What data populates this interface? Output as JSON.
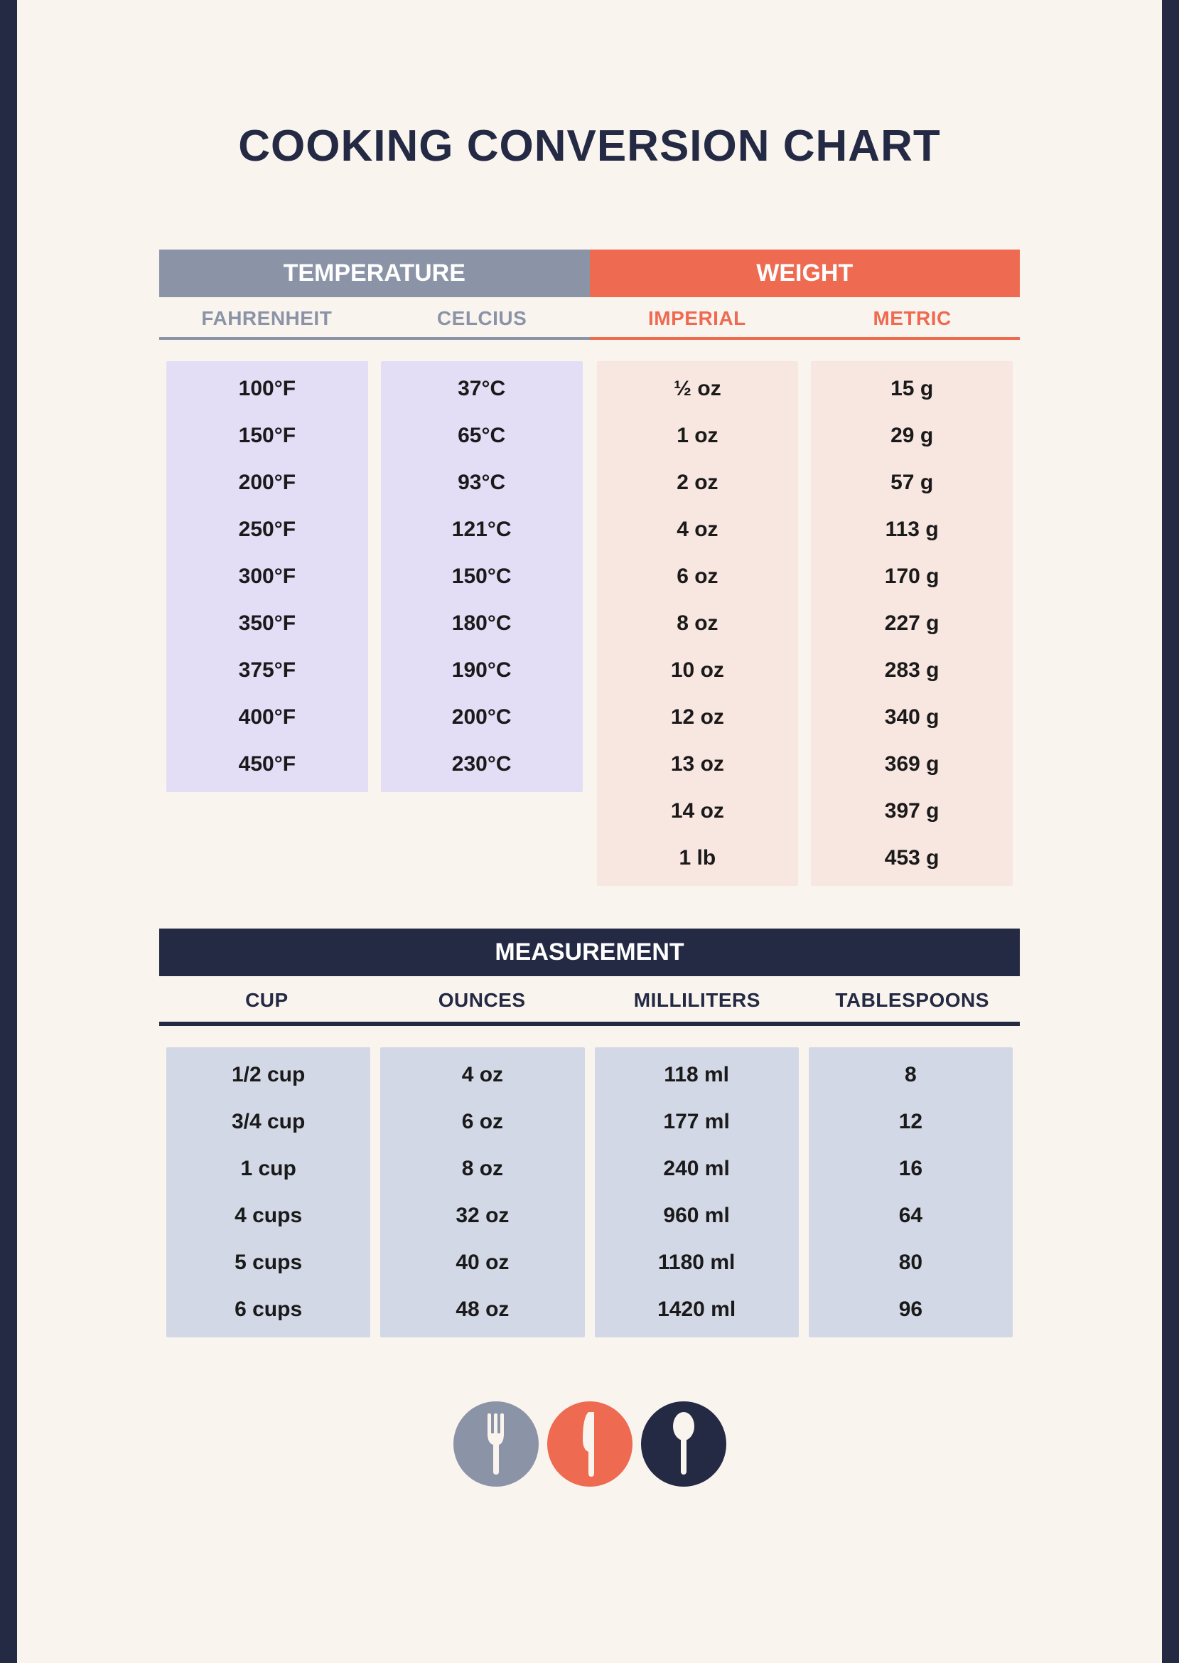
{
  "title": "COOKING CONVERSION CHART",
  "colors": {
    "page_bg": "#faf4ef",
    "border_navy": "#242a44",
    "slate": "#8b94a7",
    "coral": "#ee6a50",
    "purple_cell": "#e3ddf6",
    "peach_cell": "#f8e6e0",
    "slate_cell": "#d3d8e6"
  },
  "temperature": {
    "header": "TEMPERATURE",
    "sub_left": "FAHRENHEIT",
    "sub_right": "CELCIUS",
    "rows": [
      {
        "f": "100°F",
        "c": "37°C"
      },
      {
        "f": "150°F",
        "c": "65°C"
      },
      {
        "f": "200°F",
        "c": "93°C"
      },
      {
        "f": "250°F",
        "c": "121°C"
      },
      {
        "f": "300°F",
        "c": "150°C"
      },
      {
        "f": "350°F",
        "c": "180°C"
      },
      {
        "f": "375°F",
        "c": "190°C"
      },
      {
        "f": "400°F",
        "c": "200°C"
      },
      {
        "f": "450°F",
        "c": "230°C"
      }
    ]
  },
  "weight": {
    "header": "WEIGHT",
    "sub_left": "IMPERIAL",
    "sub_right": "METRIC",
    "rows": [
      {
        "imp": "½ oz",
        "met": "15 g"
      },
      {
        "imp": "1 oz",
        "met": "29 g"
      },
      {
        "imp": "2 oz",
        "met": "57 g"
      },
      {
        "imp": "4 oz",
        "met": "113 g"
      },
      {
        "imp": "6 oz",
        "met": "170 g"
      },
      {
        "imp": "8 oz",
        "met": "227 g"
      },
      {
        "imp": "10 oz",
        "met": "283 g"
      },
      {
        "imp": "12 oz",
        "met": "340 g"
      },
      {
        "imp": "13 oz",
        "met": "369 g"
      },
      {
        "imp": "14 oz",
        "met": "397 g"
      },
      {
        "imp": "1 lb",
        "met": "453 g"
      }
    ]
  },
  "measurement": {
    "header": "MEASUREMENT",
    "columns": [
      "CUP",
      "OUNCES",
      "MILLILITERS",
      "TABLESPOONS"
    ],
    "rows": [
      {
        "cup": "1/2 cup",
        "oz": "4 oz",
        "ml": "118 ml",
        "tbsp": "8"
      },
      {
        "cup": "3/4 cup",
        "oz": "6 oz",
        "ml": "177 ml",
        "tbsp": "12"
      },
      {
        "cup": "1 cup",
        "oz": "8 oz",
        "ml": "240  ml",
        "tbsp": "16"
      },
      {
        "cup": "4 cups",
        "oz": "32 oz",
        "ml": "960 ml",
        "tbsp": "64"
      },
      {
        "cup": "5 cups",
        "oz": "40 oz",
        "ml": "1180 ml",
        "tbsp": "80"
      },
      {
        "cup": "6 cups",
        "oz": "48 oz",
        "ml": "1420 ml",
        "tbsp": "96"
      }
    ]
  },
  "icons": {
    "fork": {
      "name": "fork-icon",
      "bg": "#8b94a7"
    },
    "knife": {
      "name": "knife-icon",
      "bg": "#ee6a50"
    },
    "spoon": {
      "name": "spoon-icon",
      "bg": "#242a44"
    }
  }
}
